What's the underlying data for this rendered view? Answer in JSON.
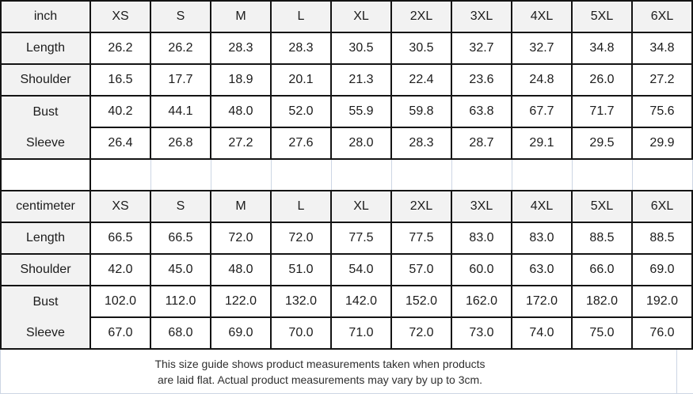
{
  "colors": {
    "grid_border": "#141414",
    "light_grid_border": "#cdd6e4",
    "header_bg": "#f2f2f2",
    "cell_bg": "#ffffff",
    "table_text": "#1c1c1c",
    "footer_text": "#2f2f2f"
  },
  "tables": [
    {
      "unit_label": "inch",
      "size_headers": [
        "XS",
        "S",
        "M",
        "L",
        "XL",
        "2XL",
        "3XL",
        "4XL",
        "5XL",
        "6XL"
      ],
      "rows": [
        {
          "label": "Length",
          "values": [
            "26.2",
            "26.2",
            "28.3",
            "28.3",
            "30.5",
            "30.5",
            "32.7",
            "32.7",
            "34.8",
            "34.8"
          ]
        },
        {
          "label": "Shoulder",
          "values": [
            "16.5",
            "17.7",
            "18.9",
            "20.1",
            "21.3",
            "22.4",
            "23.6",
            "24.8",
            "26.0",
            "27.2"
          ]
        },
        {
          "label": "Bust",
          "values": [
            "40.2",
            "44.1",
            "48.0",
            "52.0",
            "55.9",
            "59.8",
            "63.8",
            "67.7",
            "71.7",
            "75.6"
          ]
        },
        {
          "label": "Sleeve",
          "values": [
            "26.4",
            "26.8",
            "27.2",
            "27.6",
            "28.0",
            "28.3",
            "28.7",
            "29.1",
            "29.5",
            "29.9"
          ]
        }
      ]
    },
    {
      "unit_label": "centimeter",
      "size_headers": [
        "XS",
        "S",
        "M",
        "L",
        "XL",
        "2XL",
        "3XL",
        "4XL",
        "5XL",
        "6XL"
      ],
      "rows": [
        {
          "label": "Length",
          "values": [
            "66.5",
            "66.5",
            "72.0",
            "72.0",
            "77.5",
            "77.5",
            "83.0",
            "83.0",
            "88.5",
            "88.5"
          ]
        },
        {
          "label": "Shoulder",
          "values": [
            "42.0",
            "45.0",
            "48.0",
            "51.0",
            "54.0",
            "57.0",
            "60.0",
            "63.0",
            "66.0",
            "69.0"
          ]
        },
        {
          "label": "Bust",
          "values": [
            "102.0",
            "112.0",
            "122.0",
            "132.0",
            "142.0",
            "152.0",
            "162.0",
            "172.0",
            "182.0",
            "192.0"
          ]
        },
        {
          "label": "Sleeve",
          "values": [
            "67.0",
            "68.0",
            "69.0",
            "70.0",
            "71.0",
            "72.0",
            "73.0",
            "74.0",
            "75.0",
            "76.0"
          ]
        }
      ]
    }
  ],
  "footer": {
    "line1": "This size guide shows product measurements taken when products",
    "line2": "are laid flat. Actual product measurements may vary by up to 3cm."
  }
}
